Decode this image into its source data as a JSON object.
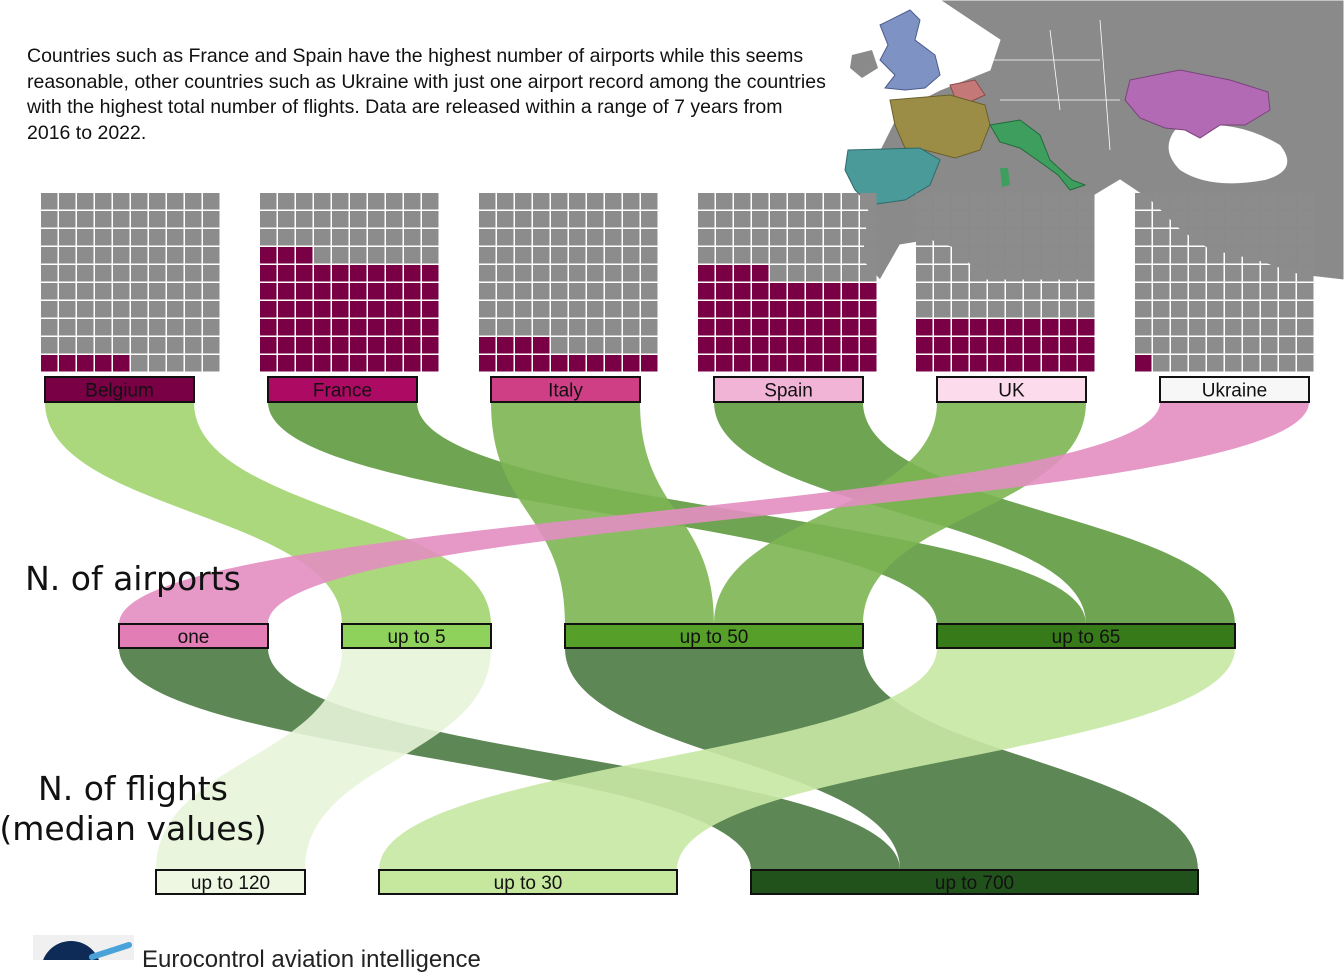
{
  "intro_text": "Countries such as France and Spain have the highest number of airports while this seems reasonable, other countries such as Ukraine with just one airport record among the countries with the highest total number of flights. Data are released within a range of 7 years from 2016 to 2022.",
  "stages": {
    "airports_title": "N. of airports",
    "flights_title_line1": "N. of flights",
    "flights_title_line2": "(median values)"
  },
  "footer": {
    "logo": "eurocontrol-logo-icon",
    "text": "Eurocontrol aviation intelligence"
  },
  "map": {
    "description_icon": "europe-map-icon",
    "colors": {
      "land": "#8a8a8a",
      "uk": "#7e92c4",
      "france": "#9b8d45",
      "spain": "#4a9a9a",
      "italy": "#3e9e5e",
      "belgium": "#c47878",
      "ukraine": "#b36ab4"
    }
  },
  "chart_data": {
    "type": "waffle-sankey",
    "waffle": {
      "grid": "10x10",
      "highlight_color": "#7a0046",
      "empty_color": "#8c8c8c",
      "countries": [
        {
          "name": "Belgium",
          "airports": 5,
          "label_color": "#7a0046",
          "label_text_color": "#111111"
        },
        {
          "name": "France",
          "airports": 63,
          "label_color": "#ad0a64",
          "label_text_color": "#111111"
        },
        {
          "name": "Italy",
          "airports": 14,
          "label_color": "#ce3f85",
          "label_text_color": "#111111"
        },
        {
          "name": "Spain",
          "airports": 54,
          "label_color": "#f1b3d6",
          "label_text_color": "#111111"
        },
        {
          "name": "UK",
          "airports": 30,
          "label_color": "#fcdcec",
          "label_text_color": "#111111"
        },
        {
          "name": "Ukraine",
          "airports": 1,
          "label_color": "#f7f7f7",
          "label_text_color": "#111111"
        }
      ]
    },
    "airport_categories": [
      {
        "name": "one",
        "color": "#e27db6"
      },
      {
        "name": "up to 5",
        "color": "#8ed25b"
      },
      {
        "name": "up to 50",
        "color": "#56a02a"
      },
      {
        "name": "up to 65",
        "color": "#377a1a"
      }
    ],
    "flight_categories": [
      {
        "name": "up to 120",
        "color": "#eef7e2"
      },
      {
        "name": "up to 30",
        "color": "#c5e79e"
      },
      {
        "name": "up to 700",
        "color": "#22521b"
      }
    ],
    "flows_country_to_airports": [
      {
        "source": "Belgium",
        "target": "up to 5",
        "value": 1,
        "color": "#a2d46f"
      },
      {
        "source": "France",
        "target": "up to 65",
        "value": 1,
        "color": "#5e9a3f"
      },
      {
        "source": "Italy",
        "target": "up to 50",
        "value": 1,
        "color": "#7cb552"
      },
      {
        "source": "Spain",
        "target": "up to 65",
        "value": 1,
        "color": "#5e9a3f"
      },
      {
        "source": "UK",
        "target": "up to 50",
        "value": 1,
        "color": "#7cb552"
      },
      {
        "source": "Ukraine",
        "target": "one",
        "value": 1,
        "color": "#e38ec1"
      }
    ],
    "flows_airports_to_flights": [
      {
        "source": "one",
        "target": "up to 700",
        "value": 1,
        "color": "#4d7a44"
      },
      {
        "source": "up to 5",
        "target": "up to 120",
        "value": 1,
        "color": "#e7f4d8"
      },
      {
        "source": "up to 50",
        "target": "up to 700",
        "value": 2,
        "color": "#4d7a44"
      },
      {
        "source": "up to 65",
        "target": "up to 30",
        "value": 2,
        "color": "#c8e8a4"
      }
    ]
  }
}
